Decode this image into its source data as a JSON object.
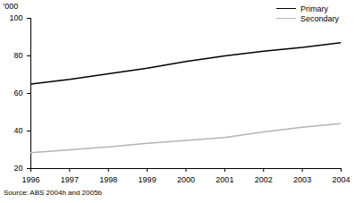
{
  "chart_data": {
    "type": "line",
    "y_label": "'000",
    "caption": "Source: ABS 2004h and 2005b",
    "x": [
      1996,
      1997,
      1998,
      1999,
      2000,
      2001,
      2002,
      2003,
      2004
    ],
    "series": [
      {
        "name": "Primary",
        "color": "#000000",
        "values": [
          65,
          67.5,
          70.5,
          73.5,
          77,
          80,
          82.5,
          84.5,
          87
        ]
      },
      {
        "name": "Secondary",
        "color": "#b3b3b3",
        "values": [
          28.5,
          30,
          31.5,
          33.5,
          35,
          36.5,
          39.5,
          42,
          44
        ]
      }
    ],
    "xlim": [
      1996,
      2004
    ],
    "xticks": [
      1996,
      1997,
      1998,
      1999,
      2000,
      2001,
      2002,
      2003,
      2004
    ],
    "ylim": [
      20,
      100
    ],
    "yticks": [
      20,
      40,
      60,
      80,
      100
    ],
    "grid": false,
    "legend": "top-right"
  }
}
